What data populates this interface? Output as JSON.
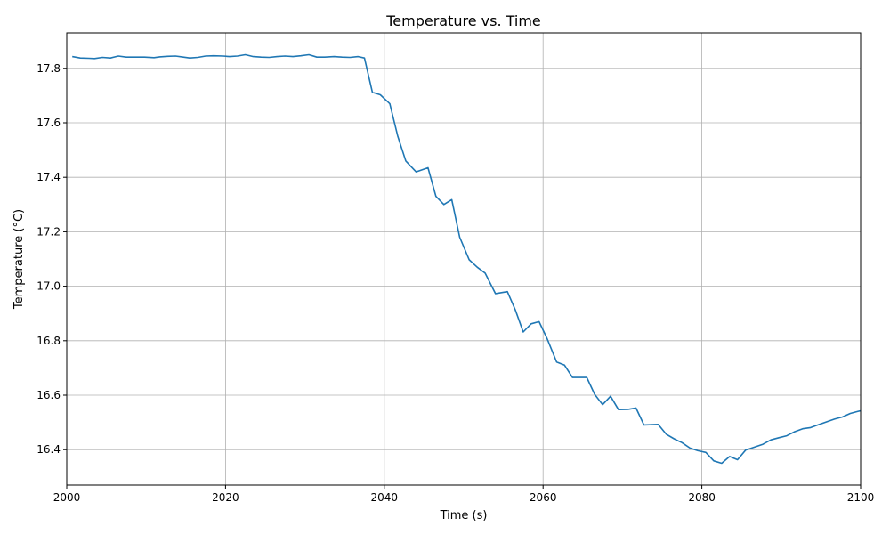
{
  "chart_data": {
    "type": "line",
    "title": "Temperature vs. Time",
    "xlabel": "Time (s)",
    "ylabel": "Temperature (°C)",
    "xlim": [
      2000,
      2100
    ],
    "ylim": [
      16.27,
      17.93
    ],
    "xticks": [
      2000,
      2020,
      2040,
      2060,
      2080,
      2100
    ],
    "yticks": [
      16.4,
      16.6,
      16.8,
      17.0,
      17.2,
      17.4,
      17.6,
      17.8
    ],
    "grid": true,
    "series": [
      {
        "color": "#1f77b4",
        "x": [
          2000.7,
          2001.7,
          2002.8,
          2003.5,
          2004.5,
          2005.5,
          2006.5,
          2007.5,
          2008.5,
          2009.8,
          2011.0,
          2011.7,
          2012.7,
          2013.7,
          2014.5,
          2015.5,
          2016.5,
          2017.5,
          2018.5,
          2019.7,
          2020.5,
          2021.5,
          2022.5,
          2023.5,
          2024.5,
          2025.5,
          2026.5,
          2027.5,
          2028.5,
          2029.5,
          2030.5,
          2031.5,
          2032.5,
          2033.7,
          2034.7,
          2035.7,
          2036.7,
          2037.5,
          2038.5,
          2039.5,
          2040.7,
          2041.7,
          2042.7,
          2044.0,
          2045.5,
          2046.5,
          2047.5,
          2048.5,
          2049.5,
          2050.7,
          2051.7,
          2052.7,
          2054.0,
          2055.5,
          2056.5,
          2057.5,
          2058.5,
          2059.5,
          2060.5,
          2061.7,
          2062.7,
          2063.7,
          2065.5,
          2066.5,
          2067.5,
          2068.5,
          2069.5,
          2070.7,
          2071.7,
          2072.7,
          2074.5,
          2075.5,
          2076.5,
          2077.5,
          2078.5,
          2079.5,
          2080.5,
          2081.5,
          2082.5,
          2083.5,
          2084.5,
          2085.5,
          2086.5,
          2087.7,
          2088.7,
          2089.7,
          2090.7,
          2091.7,
          2092.7,
          2093.7,
          2094.7,
          2095.7,
          2096.7,
          2097.7,
          2098.7,
          2099.7,
          2100.0
        ],
        "y": [
          17.843,
          17.838,
          17.837,
          17.836,
          17.84,
          17.838,
          17.845,
          17.841,
          17.841,
          17.841,
          17.839,
          17.842,
          17.844,
          17.845,
          17.842,
          17.838,
          17.84,
          17.845,
          17.846,
          17.845,
          17.843,
          17.845,
          17.85,
          17.843,
          17.841,
          17.84,
          17.843,
          17.845,
          17.843,
          17.846,
          17.85,
          17.841,
          17.841,
          17.843,
          17.841,
          17.84,
          17.843,
          17.838,
          17.712,
          17.703,
          17.67,
          17.55,
          17.46,
          17.42,
          17.435,
          17.33,
          17.3,
          17.318,
          17.18,
          17.097,
          17.07,
          17.048,
          16.973,
          16.98,
          16.913,
          16.832,
          16.862,
          16.87,
          16.808,
          16.722,
          16.71,
          16.665,
          16.665,
          16.603,
          16.565,
          16.596,
          16.547,
          16.548,
          16.553,
          16.491,
          16.493,
          16.457,
          16.44,
          16.426,
          16.406,
          16.396,
          16.39,
          16.359,
          16.35,
          16.375,
          16.363,
          16.398,
          16.408,
          16.42,
          16.436,
          16.444,
          16.451,
          16.466,
          16.477,
          16.481,
          16.492,
          16.502,
          16.512,
          16.52,
          16.533,
          16.541,
          16.543
        ]
      }
    ]
  }
}
